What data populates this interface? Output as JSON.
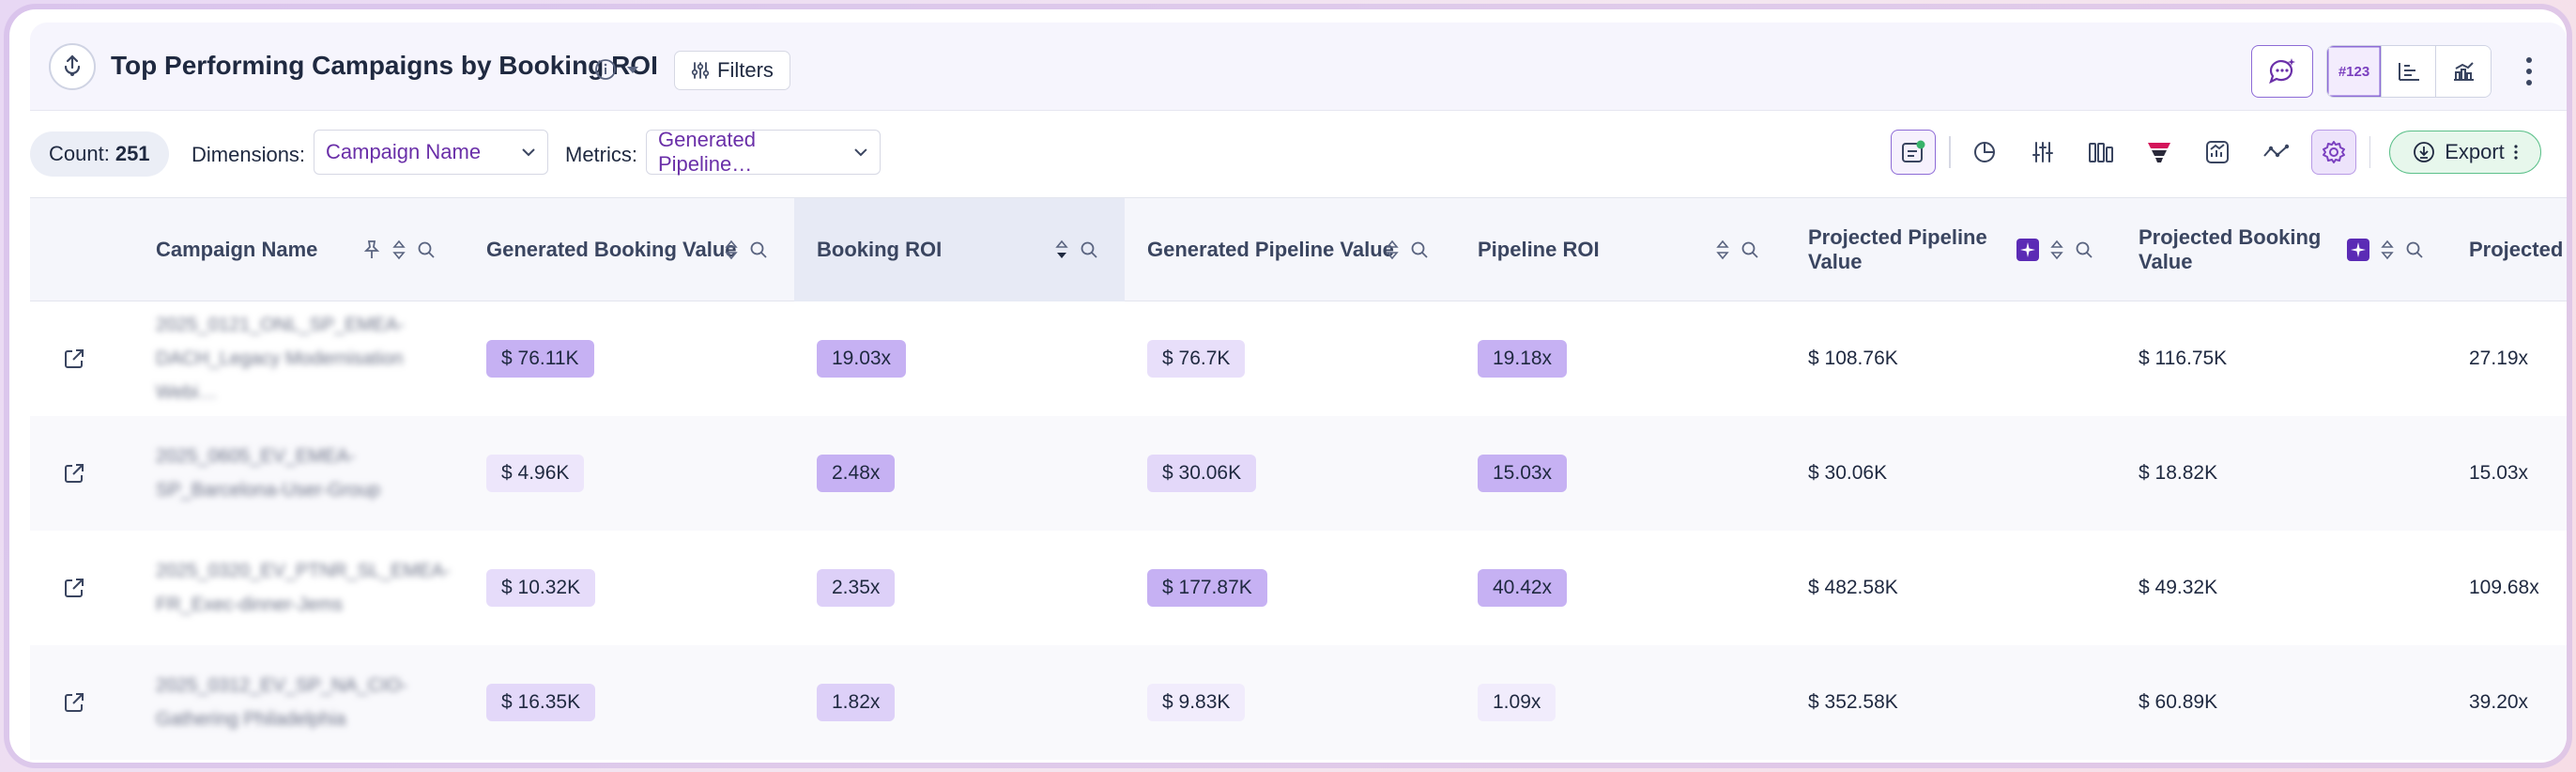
{
  "header": {
    "title": "Top Performing Campaigns by Booking ROI",
    "filters_label": "Filters",
    "number_toggle_label": "#123"
  },
  "toolbar": {
    "count_label": "Count:",
    "count_value": "251",
    "dimensions_label": "Dimensions:",
    "dimensions_value": "Campaign Name",
    "metrics_label": "Metrics:",
    "metrics_value": "Generated Pipeline…",
    "export_label": "Export"
  },
  "columns": [
    "Campaign Name",
    "Generated Booking Value",
    "Booking ROI",
    "Generated Pipeline Value",
    "Pipeline ROI",
    "Projected Pipeline Value",
    "Projected Booking Value",
    "Projected P… ROI"
  ],
  "rows": [
    {
      "campaign": "2025_0121_ONL_SP_EMEA-DACH_Legacy Modernisation Webi…",
      "gen_booking": "$ 76.11K",
      "booking_roi": "19.03x",
      "gen_pipeline": "$ 76.7K",
      "pipeline_roi": "19.18x",
      "proj_pipeline": "$ 108.76K",
      "proj_booking": "$ 116.75K",
      "proj_roi": "27.19x"
    },
    {
      "campaign": "2025_0605_EV_EMEA-SP_Barcelona-User-Group",
      "gen_booking": "$ 4.96K",
      "booking_roi": "2.48x",
      "gen_pipeline": "$ 30.06K",
      "pipeline_roi": "15.03x",
      "proj_pipeline": "$ 30.06K",
      "proj_booking": "$ 18.82K",
      "proj_roi": "15.03x"
    },
    {
      "campaign": "2025_0320_EV_PTNR_SL_EMEA-FR_Exec-dinner-Jems",
      "gen_booking": "$ 10.32K",
      "booking_roi": "2.35x",
      "gen_pipeline": "$ 177.87K",
      "pipeline_roi": "40.42x",
      "proj_pipeline": "$ 482.58K",
      "proj_booking": "$ 49.32K",
      "proj_roi": "109.68x"
    },
    {
      "campaign": "2025_0312_EV_SP_NA_CIO-Gathering Philadelphia",
      "gen_booking": "$ 16.35K",
      "booking_roi": "1.82x",
      "gen_pipeline": "$ 9.83K",
      "pipeline_roi": "1.09x",
      "proj_pipeline": "$ 352.58K",
      "proj_booking": "$ 60.89K",
      "proj_roi": "39.20x"
    }
  ],
  "colors": {
    "chip_strong": "#c6b1f3",
    "chip_medium": "#ddd0f8",
    "chip_light": "#ede6fb",
    "accent": "#8d6bd6",
    "export_green": "#5cc08a"
  }
}
